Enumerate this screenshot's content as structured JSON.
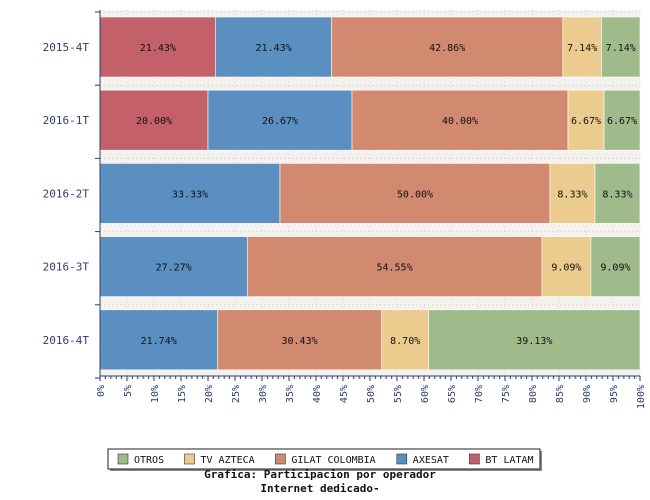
{
  "chart_data": {
    "type": "bar",
    "orientation": "horizontal",
    "stacked": true,
    "categories": [
      "2015-4T",
      "2016-1T",
      "2016-2T",
      "2016-3T",
      "2016-4T"
    ],
    "series": [
      {
        "name": "BT LATAM",
        "color": "#c3606a",
        "values": [
          21.43,
          20.0,
          0,
          0,
          0
        ],
        "labels": [
          "21.43%",
          "20.00%",
          "",
          "",
          ""
        ]
      },
      {
        "name": "AXESAT",
        "color": "#5b8fc2",
        "values": [
          21.43,
          26.67,
          33.33,
          27.27,
          21.74
        ],
        "labels": [
          "21.43%",
          "26.67%",
          "33.33%",
          "27.27%",
          "21.74%"
        ]
      },
      {
        "name": "GILAT COLOMBIA",
        "color": "#d18a70",
        "values": [
          42.86,
          40.0,
          50.0,
          54.55,
          30.43
        ],
        "labels": [
          "42.86%",
          "40.00%",
          "50.00%",
          "54.55%",
          "30.43%"
        ]
      },
      {
        "name": "TV AZTECA",
        "color": "#ebcc8e",
        "values": [
          7.14,
          6.67,
          8.33,
          9.09,
          8.7
        ],
        "labels": [
          "7.14%",
          "6.67%",
          "8.33%",
          "9.09%",
          "8.70%"
        ]
      },
      {
        "name": "OTROS",
        "color": "#9fbb8c",
        "values": [
          7.14,
          6.67,
          8.33,
          9.09,
          39.13
        ],
        "labels": [
          "7.14%",
          "6.67%",
          "8.33%",
          "9.09%",
          "39.13%"
        ]
      }
    ],
    "x_ticks": [
      "0%",
      "5%",
      "10%",
      "15%",
      "20%",
      "25%",
      "30%",
      "35%",
      "40%",
      "45%",
      "50%",
      "55%",
      "60%",
      "65%",
      "70%",
      "75%",
      "80%",
      "85%",
      "90%",
      "95%",
      "100%"
    ],
    "xlim": [
      0,
      100
    ],
    "legend": {
      "placement": "bottom",
      "items": [
        "OTROS",
        "TV AZTECA",
        "GILAT COLOMBIA",
        "AXESAT",
        "BT LATAM"
      ]
    },
    "caption": [
      "Grafica: Participacion por operador",
      "Internet dedicado-"
    ],
    "grid": true
  }
}
